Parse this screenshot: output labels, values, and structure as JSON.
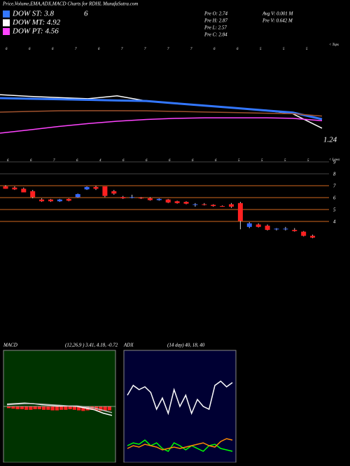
{
  "header": {
    "title": "Price,Volume,EMA,ADX,MACD Charts for RDHL MunafaSutra.com",
    "legend": [
      {
        "label": "DOW ST: 3.8",
        "color": "#3377ff"
      },
      {
        "label": "DOW MT: 4.92",
        "color": "#ffffff"
      },
      {
        "label": "DOW PT: 4.56",
        "color": "#ff44ff"
      }
    ],
    "extra": "6",
    "stats_left": [
      "Pre  O: 2.74",
      "Pre  H: 2.87",
      "Pre  L: 2.57",
      "Pre  C: 2.84"
    ],
    "stats_right": [
      "Avg V: 0.001 M",
      "Pre  V: 0.642 M"
    ]
  },
  "chart_data": [
    {
      "type": "line",
      "ylim": [
        0,
        10
      ],
      "top_labels": [
        "6",
        "6",
        "6",
        "7",
        "6",
        "7",
        "7",
        "7",
        "7",
        "6",
        "6",
        "5",
        "5",
        "5"
      ],
      "right_label": "< Tops",
      "last_label": "1.24",
      "x": [
        0,
        1,
        2,
        3,
        4,
        5,
        6,
        7,
        8,
        9,
        10,
        11
      ],
      "series": [
        {
          "name": "price",
          "color": "#ffffff",
          "values": [
            5.45,
            5.3,
            5.2,
            5.1,
            5.35,
            4.9,
            4.7,
            4.5,
            4.3,
            4.1,
            3.8,
            2.55
          ]
        },
        {
          "name": "ema-short",
          "color": "#3377ff",
          "values": [
            5.15,
            5.1,
            5.05,
            5.0,
            4.95,
            4.9,
            4.7,
            4.5,
            4.3,
            4.1,
            3.9,
            3.33
          ]
        },
        {
          "name": "ema-long",
          "color": "#a0522d",
          "values": [
            3.94,
            4.0,
            4.05,
            4.06,
            4.06,
            4.05,
            4.0,
            3.95,
            3.9,
            3.85,
            3.8,
            3.6
          ]
        },
        {
          "name": "ema-pt",
          "color": "#ff44ff",
          "values": [
            2.12,
            2.4,
            2.7,
            2.95,
            3.15,
            3.3,
            3.4,
            3.45,
            3.45,
            3.45,
            3.4,
            3.2
          ]
        }
      ]
    },
    {
      "type": "candlestick",
      "ylim": [
        2.2,
        9.2
      ],
      "yticks": [
        9,
        8,
        7,
        6,
        5,
        4
      ],
      "top_labels": [
        "6",
        "6",
        "7",
        "6",
        "4",
        "6",
        "6",
        "6",
        "6",
        "6",
        "5",
        "5",
        "5",
        "5"
      ],
      "right_label": "< Lows",
      "candles": [
        [
          7.0,
          7.1,
          6.8,
          6.8
        ],
        [
          6.9,
          7.0,
          6.7,
          6.75
        ],
        [
          6.8,
          6.9,
          6.5,
          6.5
        ],
        [
          6.6,
          6.7,
          6.0,
          6.1
        ],
        [
          5.9,
          6.0,
          5.7,
          5.75
        ],
        [
          5.9,
          5.95,
          5.7,
          5.75
        ],
        [
          5.75,
          5.95,
          5.7,
          5.9
        ],
        [
          5.95,
          6.0,
          5.75,
          5.8
        ],
        [
          6.1,
          6.4,
          6.05,
          6.35
        ],
        [
          6.75,
          7.0,
          6.7,
          6.95
        ],
        [
          6.95,
          7.05,
          6.7,
          6.8
        ],
        [
          7.0,
          7.0,
          6.1,
          6.2
        ],
        [
          6.6,
          6.7,
          6.3,
          6.4
        ],
        [
          6.1,
          6.2,
          5.95,
          6.0
        ],
        [
          6.05,
          6.3,
          6.0,
          6.1
        ],
        [
          6.05,
          6.1,
          5.95,
          6.0
        ],
        [
          6.0,
          6.1,
          5.8,
          5.85
        ],
        [
          5.85,
          6.0,
          5.8,
          5.95
        ],
        [
          5.9,
          5.95,
          5.6,
          5.65
        ],
        [
          5.75,
          5.8,
          5.55,
          5.6
        ],
        [
          5.7,
          5.75,
          5.5,
          5.55
        ],
        [
          5.45,
          5.6,
          5.3,
          5.5
        ],
        [
          5.5,
          5.6,
          5.4,
          5.45
        ],
        [
          5.45,
          5.5,
          5.3,
          5.35
        ],
        [
          5.35,
          5.4,
          5.3,
          5.32
        ],
        [
          5.5,
          5.6,
          5.2,
          5.3
        ],
        [
          5.6,
          5.7,
          3.4,
          4.1
        ],
        [
          3.6,
          4.0,
          3.5,
          3.9
        ],
        [
          3.8,
          3.9,
          3.55,
          3.6
        ],
        [
          3.7,
          3.8,
          3.3,
          3.35
        ],
        [
          3.4,
          3.5,
          3.3,
          3.45
        ],
        [
          3.4,
          3.6,
          3.3,
          3.45
        ],
        [
          3.35,
          3.5,
          3.2,
          3.25
        ],
        [
          3.2,
          3.25,
          2.8,
          2.85
        ],
        [
          2.85,
          2.95,
          2.65,
          2.7
        ]
      ]
    },
    {
      "type": "macd",
      "title": "MACD",
      "params": "(12,26,9 ) 3.41, 4.18, -0.72",
      "ylim": [
        -10,
        10
      ],
      "series": [
        {
          "name": "macd",
          "color": "#ffffff",
          "values": [
            0.4,
            0.5,
            0.6,
            0.5,
            0.3,
            0.2,
            0.1,
            0.1,
            0,
            -0.3,
            -0.6,
            -1.2,
            -1.6
          ]
        },
        {
          "name": "signal",
          "color": "#bbbbbb",
          "values": [
            0.3,
            0.4,
            0.5,
            0.5,
            0.4,
            0.3,
            0.2,
            0.1,
            0.1,
            -0.1,
            -0.3,
            -0.7,
            -1.1
          ]
        }
      ],
      "hist": [
        -0.3,
        -0.4,
        -0.5,
        -0.5,
        -0.6,
        -0.6,
        -0.5,
        -0.5,
        -0.6,
        -0.6,
        -0.7,
        -0.7,
        -0.6,
        -0.6,
        -0.5,
        -0.6,
        -0.7,
        -0.8,
        -0.7,
        -0.6,
        -0.7,
        -0.8,
        -0.8,
        -0.7
      ]
    },
    {
      "type": "adx",
      "title": "ADX",
      "params": "(14 day) 40, 18, 40",
      "ylim": [
        0,
        80
      ],
      "series": [
        {
          "name": "adx",
          "color": "#ffffff",
          "values": [
            48,
            55,
            52,
            54,
            50,
            38,
            46,
            35,
            52,
            40,
            48,
            35,
            45,
            40,
            38,
            55,
            58,
            54,
            57
          ]
        },
        {
          "name": "plus-di",
          "color": "#00ff00",
          "values": [
            12,
            14,
            13,
            16,
            12,
            14,
            10,
            8,
            14,
            12,
            9,
            12,
            10,
            8,
            12,
            13,
            10,
            9,
            8
          ]
        },
        {
          "name": "minus-di",
          "color": "#ff8c00",
          "values": [
            10,
            12,
            11,
            13,
            12,
            11,
            9,
            10,
            11,
            10,
            11,
            12,
            13,
            14,
            12,
            11,
            15,
            17,
            16
          ]
        }
      ]
    }
  ]
}
